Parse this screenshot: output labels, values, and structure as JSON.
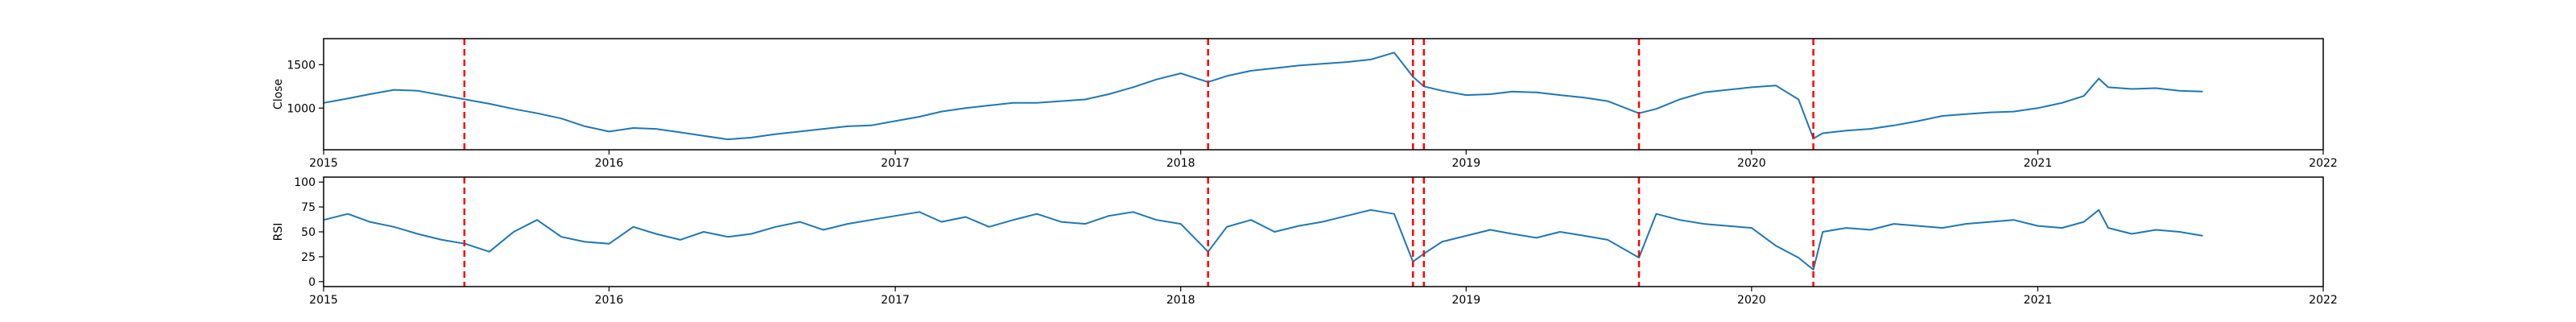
{
  "chart_data": [
    {
      "type": "line",
      "title": "",
      "xlabel": "",
      "ylabel": "Close",
      "xlim": [
        "2015-01-01",
        "2022-01-01"
      ],
      "ylim": [
        520,
        1800
      ],
      "xticks": [
        "2015",
        "2016",
        "2017",
        "2018",
        "2019",
        "2020",
        "2021",
        "2022"
      ],
      "yticks": [
        1000,
        1500
      ],
      "line_color": "#1f77b4",
      "series": [
        {
          "x": [
            "2015-01-01",
            "2015-02-01",
            "2015-03-01",
            "2015-04-01",
            "2015-05-01",
            "2015-06-01",
            "2015-07-01",
            "2015-08-01",
            "2015-09-01",
            "2015-10-01",
            "2015-11-01",
            "2015-12-01",
            "2016-01-01",
            "2016-02-01",
            "2016-03-01",
            "2016-04-01",
            "2016-05-01",
            "2016-06-01",
            "2016-07-01",
            "2016-08-01",
            "2016-09-01",
            "2016-10-01",
            "2016-11-01",
            "2016-12-01",
            "2017-01-01",
            "2017-02-01",
            "2017-03-01",
            "2017-04-01",
            "2017-05-01",
            "2017-06-01",
            "2017-07-01",
            "2017-08-01",
            "2017-09-01",
            "2017-10-01",
            "2017-11-01",
            "2017-12-01",
            "2018-01-01",
            "2018-02-05",
            "2018-03-01",
            "2018-04-01",
            "2018-05-01",
            "2018-06-01",
            "2018-07-01",
            "2018-08-01",
            "2018-09-01",
            "2018-10-01",
            "2018-10-25",
            "2018-11-08",
            "2018-12-01",
            "2019-01-01",
            "2019-02-01",
            "2019-03-01",
            "2019-04-01",
            "2019-05-01",
            "2019-06-01",
            "2019-07-01",
            "2019-08-10",
            "2019-09-01",
            "2019-10-01",
            "2019-11-01",
            "2019-12-01",
            "2020-01-01",
            "2020-02-01",
            "2020-03-01",
            "2020-03-20",
            "2020-04-01",
            "2020-05-01",
            "2020-06-01",
            "2020-07-01",
            "2020-08-01",
            "2020-09-01",
            "2020-10-01",
            "2020-11-01",
            "2020-12-01",
            "2021-01-01",
            "2021-02-01",
            "2021-03-01",
            "2021-03-20",
            "2021-04-01",
            "2021-05-01",
            "2021-06-01",
            "2021-07-01",
            "2021-07-31"
          ],
          "y": [
            1060,
            1110,
            1160,
            1210,
            1200,
            1150,
            1100,
            1050,
            990,
            940,
            880,
            790,
            730,
            770,
            760,
            720,
            680,
            640,
            660,
            700,
            730,
            760,
            790,
            800,
            850,
            900,
            960,
            1000,
            1030,
            1060,
            1060,
            1080,
            1100,
            1160,
            1240,
            1330,
            1400,
            1300,
            1370,
            1430,
            1460,
            1490,
            1510,
            1530,
            1560,
            1640,
            1360,
            1250,
            1200,
            1150,
            1160,
            1190,
            1180,
            1150,
            1120,
            1080,
            940,
            990,
            1100,
            1180,
            1210,
            1240,
            1260,
            1100,
            650,
            710,
            740,
            760,
            800,
            850,
            910,
            930,
            950,
            960,
            1000,
            1060,
            1140,
            1340,
            1240,
            1220,
            1230,
            1200,
            1190
          ]
        }
      ]
    },
    {
      "type": "line",
      "title": "",
      "xlabel": "",
      "ylabel": "RSI",
      "xlim": [
        "2015-01-01",
        "2022-01-01"
      ],
      "ylim": [
        -5,
        105
      ],
      "xticks": [
        "2015",
        "2016",
        "2017",
        "2018",
        "2019",
        "2020",
        "2021",
        "2022"
      ],
      "yticks": [
        0,
        25,
        50,
        75,
        100
      ],
      "line_color": "#1f77b4",
      "series": [
        {
          "x": [
            "2015-01-01",
            "2015-02-01",
            "2015-03-01",
            "2015-04-01",
            "2015-05-01",
            "2015-06-01",
            "2015-07-01",
            "2015-08-01",
            "2015-09-01",
            "2015-10-01",
            "2015-11-01",
            "2015-12-01",
            "2016-01-01",
            "2016-02-01",
            "2016-03-01",
            "2016-04-01",
            "2016-05-01",
            "2016-06-01",
            "2016-07-01",
            "2016-08-01",
            "2016-09-01",
            "2016-10-01",
            "2016-11-01",
            "2016-12-01",
            "2017-01-01",
            "2017-02-01",
            "2017-03-01",
            "2017-04-01",
            "2017-05-01",
            "2017-06-01",
            "2017-07-01",
            "2017-08-01",
            "2017-09-01",
            "2017-10-01",
            "2017-11-01",
            "2017-12-01",
            "2018-01-01",
            "2018-02-05",
            "2018-03-01",
            "2018-04-01",
            "2018-05-01",
            "2018-06-01",
            "2018-07-01",
            "2018-08-01",
            "2018-09-01",
            "2018-10-01",
            "2018-10-25",
            "2018-11-08",
            "2018-12-01",
            "2019-01-01",
            "2019-02-01",
            "2019-03-01",
            "2019-04-01",
            "2019-05-01",
            "2019-06-01",
            "2019-07-01",
            "2019-08-10",
            "2019-09-01",
            "2019-10-01",
            "2019-11-01",
            "2019-12-01",
            "2020-01-01",
            "2020-02-01",
            "2020-03-01",
            "2020-03-20",
            "2020-04-01",
            "2020-05-01",
            "2020-06-01",
            "2020-07-01",
            "2020-08-01",
            "2020-09-01",
            "2020-10-01",
            "2020-11-01",
            "2020-12-01",
            "2021-01-01",
            "2021-02-01",
            "2021-03-01",
            "2021-03-20",
            "2021-04-01",
            "2021-05-01",
            "2021-06-01",
            "2021-07-01",
            "2021-07-31"
          ],
          "y": [
            62,
            68,
            60,
            55,
            48,
            42,
            38,
            30,
            50,
            62,
            45,
            40,
            38,
            55,
            48,
            42,
            50,
            45,
            48,
            55,
            60,
            52,
            58,
            62,
            66,
            70,
            60,
            65,
            55,
            62,
            68,
            60,
            58,
            66,
            70,
            62,
            58,
            30,
            55,
            62,
            50,
            56,
            60,
            66,
            72,
            68,
            20,
            28,
            40,
            46,
            52,
            48,
            44,
            50,
            46,
            42,
            24,
            68,
            62,
            58,
            56,
            54,
            36,
            24,
            12,
            50,
            54,
            52,
            58,
            56,
            54,
            58,
            60,
            62,
            56,
            54,
            60,
            72,
            54,
            48,
            52,
            50,
            46
          ]
        }
      ]
    }
  ],
  "event_markers": {
    "color": "#ff0000",
    "dates": [
      "2015-06-30",
      "2018-02-05",
      "2018-10-25",
      "2018-11-08",
      "2019-08-10",
      "2020-03-20"
    ]
  }
}
